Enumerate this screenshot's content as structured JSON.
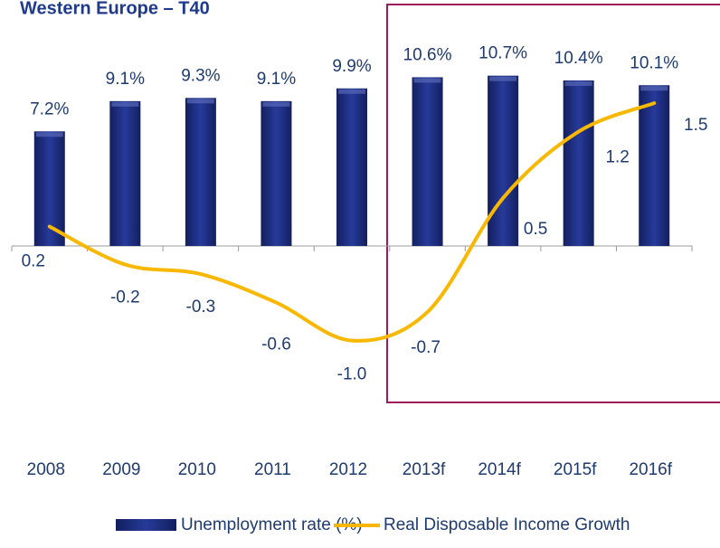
{
  "chart_data": {
    "type": "bar-line",
    "title": "Western Europe – T40",
    "categories": [
      "2008",
      "2009",
      "2010",
      "2011",
      "2012",
      "2013f",
      "2014f",
      "2015f",
      "2016f"
    ],
    "series": [
      {
        "name": "Unemployment rate (%)",
        "type": "bar",
        "color": "#1b2a7a",
        "values": [
          7.2,
          9.1,
          9.3,
          9.1,
          9.9,
          10.6,
          10.7,
          10.4,
          10.1
        ],
        "value_labels": [
          "7.2%",
          "9.1%",
          "9.3%",
          "9.1%",
          "9.9%",
          "10.6%",
          "10.7%",
          "10.4%",
          "10.1%"
        ]
      },
      {
        "name": "Real Disposable Income Growth",
        "type": "line",
        "color": "#f9b800",
        "axis": "y2",
        "values": [
          0.2,
          -0.2,
          -0.3,
          -0.6,
          -1.0,
          -0.7,
          0.5,
          1.2,
          1.5
        ],
        "value_labels": [
          "0.2",
          "-0.2",
          "-0.3",
          "-0.6",
          "-1.0",
          "-0.7",
          "0.5",
          "1.2",
          "1.5"
        ]
      }
    ],
    "ylim": [
      -10,
      15
    ],
    "y2lim": [
      -1.68,
      2.51
    ],
    "legend": "bottom"
  }
}
